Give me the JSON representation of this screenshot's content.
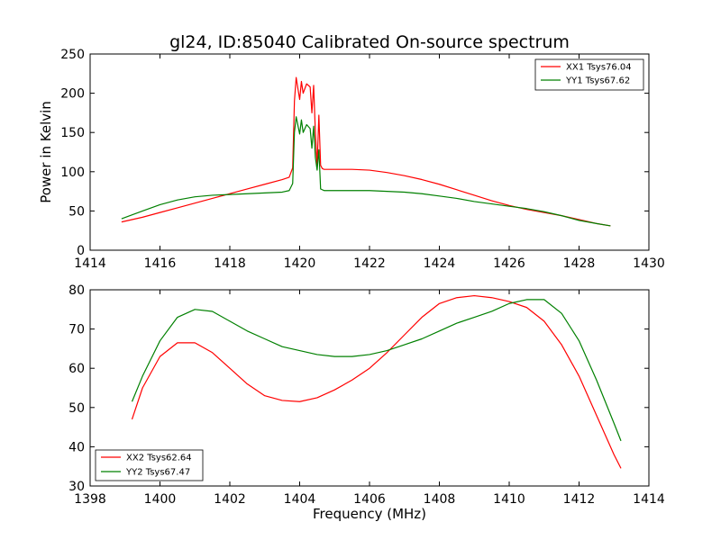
{
  "chart_data": [
    {
      "type": "line",
      "title": "gl24, ID:85040 Calibrated On-source spectrum",
      "xlabel": "",
      "ylabel": "Power in Kelvin",
      "xlim": [
        1414,
        1430
      ],
      "ylim": [
        0,
        250
      ],
      "xticks": [
        1414,
        1416,
        1418,
        1420,
        1422,
        1424,
        1426,
        1428,
        1430
      ],
      "yticks": [
        0,
        50,
        100,
        150,
        200,
        250
      ],
      "grid": false,
      "legend": "top-right",
      "series": [
        {
          "name": "XX1 Tsys76.04",
          "color": "#ff0000",
          "x": [
            1414.9,
            1415.5,
            1416,
            1416.5,
            1417,
            1417.5,
            1418,
            1418.5,
            1419,
            1419.5,
            1419.7,
            1419.8,
            1419.85,
            1419.9,
            1420.0,
            1420.05,
            1420.1,
            1420.2,
            1420.3,
            1420.35,
            1420.4,
            1420.45,
            1420.5,
            1420.55,
            1420.6,
            1420.65,
            1420.7,
            1421,
            1421.5,
            1422,
            1422.5,
            1423,
            1423.5,
            1424,
            1424.5,
            1425,
            1425.5,
            1426,
            1426.5,
            1427,
            1427.5,
            1428,
            1428.5,
            1428.9
          ],
          "y": [
            36,
            42,
            48,
            54,
            60,
            66,
            72,
            78,
            84,
            90,
            93,
            105,
            190,
            220,
            192,
            215,
            200,
            212,
            208,
            175,
            210,
            150,
            108,
            172,
            108,
            104,
            103,
            103,
            103,
            102,
            99,
            95,
            90,
            84,
            77,
            70,
            63,
            57,
            52,
            48,
            44,
            39,
            34,
            31
          ]
        },
        {
          "name": "YY1 Tsys67.62",
          "color": "#008000",
          "x": [
            1414.9,
            1415.5,
            1416,
            1416.5,
            1417,
            1417.5,
            1418,
            1418.5,
            1419,
            1419.5,
            1419.7,
            1419.8,
            1419.85,
            1419.9,
            1420.0,
            1420.05,
            1420.1,
            1420.2,
            1420.3,
            1420.35,
            1420.4,
            1420.45,
            1420.5,
            1420.55,
            1420.6,
            1420.65,
            1420.7,
            1421,
            1421.5,
            1422,
            1422.5,
            1423,
            1423.5,
            1424,
            1424.5,
            1425,
            1425.5,
            1426,
            1426.5,
            1427,
            1427.5,
            1428,
            1428.5,
            1428.9
          ],
          "y": [
            40,
            50,
            58,
            64,
            68,
            70,
            71,
            72,
            73,
            74,
            76,
            85,
            150,
            170,
            148,
            166,
            150,
            160,
            155,
            130,
            158,
            118,
            102,
            128,
            78,
            77,
            76,
            76,
            76,
            76,
            75,
            74,
            72,
            69,
            66,
            62,
            59,
            56,
            53,
            49,
            44,
            38,
            34,
            31
          ]
        }
      ]
    },
    {
      "type": "line",
      "title": "",
      "xlabel": "Frequency (MHz)",
      "ylabel": "",
      "xlim": [
        1398,
        1414
      ],
      "ylim": [
        30,
        80
      ],
      "xticks": [
        1398,
        1400,
        1402,
        1404,
        1406,
        1408,
        1410,
        1412,
        1414
      ],
      "yticks": [
        30,
        40,
        50,
        60,
        70,
        80
      ],
      "grid": false,
      "legend": "bottom-left",
      "series": [
        {
          "name": "XX2 Tsys62.64",
          "color": "#ff0000",
          "x": [
            1399.2,
            1399.5,
            1400,
            1400.5,
            1401,
            1401.5,
            1402,
            1402.5,
            1403,
            1403.5,
            1404,
            1404.5,
            1405,
            1405.5,
            1406,
            1406.5,
            1407,
            1407.5,
            1408,
            1408.5,
            1409,
            1409.5,
            1410,
            1410.5,
            1411,
            1411.5,
            1412,
            1412.5,
            1413,
            1413.2
          ],
          "y": [
            47,
            55,
            63,
            66.5,
            66.5,
            64,
            60,
            56,
            53,
            51.8,
            51.5,
            52.5,
            54.5,
            57,
            60,
            64,
            68.5,
            73,
            76.5,
            78,
            78.5,
            78,
            77,
            75.5,
            72,
            66,
            58,
            48,
            38,
            34.5
          ]
        },
        {
          "name": "YY2 Tsys67.47",
          "color": "#008000",
          "x": [
            1399.2,
            1399.5,
            1400,
            1400.5,
            1401,
            1401.5,
            1402,
            1402.5,
            1403,
            1403.5,
            1404,
            1404.5,
            1405,
            1405.5,
            1406,
            1406.5,
            1407,
            1407.5,
            1408,
            1408.5,
            1409,
            1409.5,
            1410,
            1410.5,
            1411,
            1411.5,
            1412,
            1412.5,
            1413,
            1413.2
          ],
          "y": [
            51.5,
            58,
            67,
            73,
            75,
            74.5,
            72,
            69.5,
            67.5,
            65.5,
            64.5,
            63.5,
            63,
            63,
            63.5,
            64.5,
            66,
            67.5,
            69.5,
            71.5,
            73,
            74.5,
            76.5,
            77.5,
            77.5,
            74,
            67,
            57,
            46,
            41.5
          ]
        }
      ]
    }
  ]
}
